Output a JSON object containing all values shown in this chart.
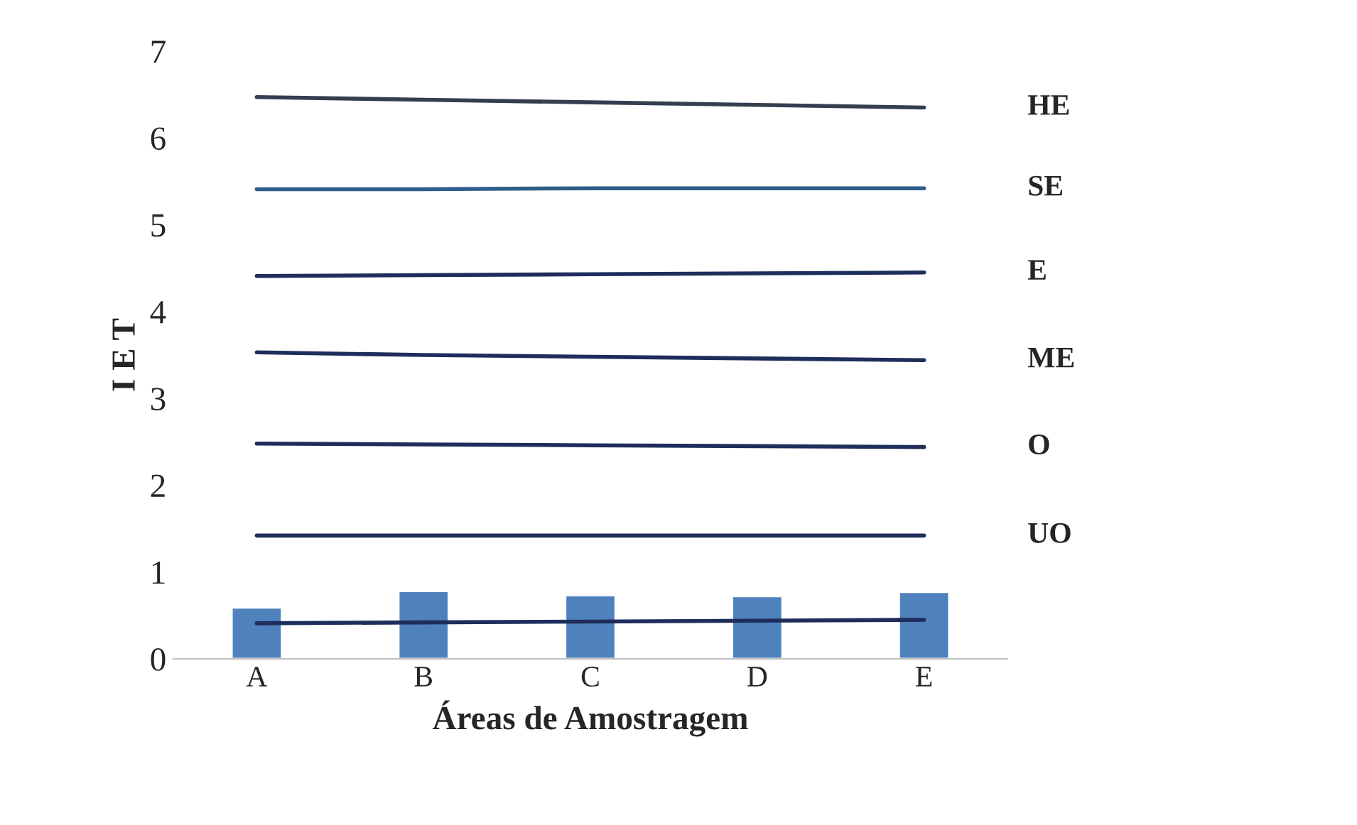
{
  "chart_data": {
    "type": "bar",
    "xlabel": "Áreas de Amostragem",
    "ylabel": "I E T",
    "categories": [
      "A",
      "B",
      "C",
      "D",
      "E"
    ],
    "ylim": [
      0,
      7
    ],
    "yticks": [
      0,
      1,
      2,
      3,
      4,
      5,
      6,
      7
    ],
    "grid": false,
    "legend": false,
    "series": [
      {
        "color": "#4f81bd",
        "values": [
          0.59,
          0.78,
          0.73,
          0.72,
          0.77
        ]
      },
      {
        "type": "line",
        "name": "HE",
        "color": "#333f4f",
        "values": [
          6.47,
          6.44,
          6.41,
          6.38,
          6.35
        ]
      },
      {
        "type": "line",
        "name": "SE",
        "color": "#2e5f8a",
        "values": [
          5.41,
          5.41,
          5.42,
          5.42,
          5.42
        ]
      },
      {
        "type": "line",
        "name": "E",
        "color": "#1f2d5c",
        "values": [
          4.41,
          4.42,
          4.43,
          4.44,
          4.45
        ]
      },
      {
        "type": "line",
        "name": "ME",
        "color": "#1f2d5c",
        "values": [
          3.53,
          3.5,
          3.48,
          3.46,
          3.44
        ]
      },
      {
        "type": "line",
        "name": "O",
        "color": "#1f2d5c",
        "values": [
          2.48,
          2.47,
          2.46,
          2.45,
          2.44
        ]
      },
      {
        "type": "line",
        "name": "UO",
        "color": "#1f2d5c",
        "values": [
          1.42,
          1.42,
          1.42,
          1.42,
          1.42
        ]
      },
      {
        "type": "line",
        "color": "#1f2d5c",
        "values": [
          0.41,
          0.42,
          0.43,
          0.44,
          0.45
        ]
      }
    ]
  }
}
